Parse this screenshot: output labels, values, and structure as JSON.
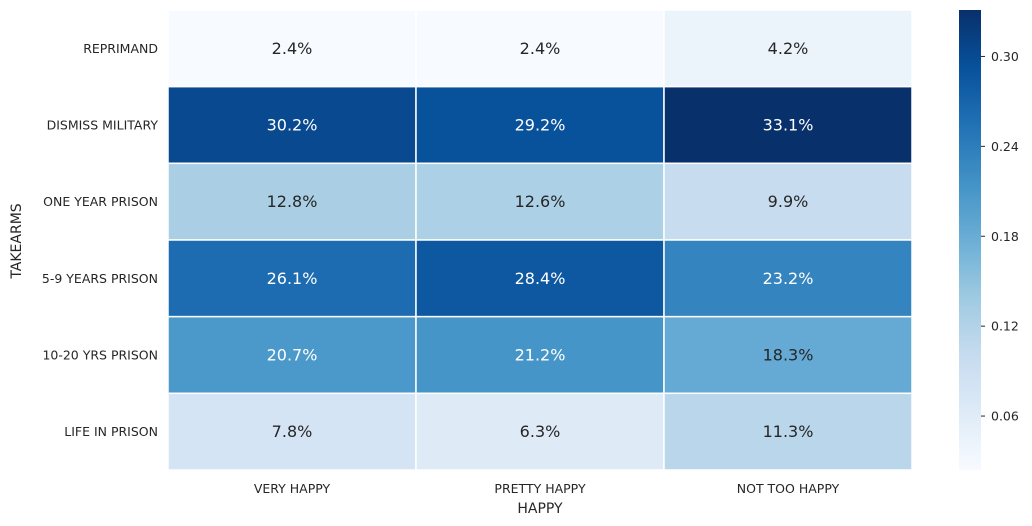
{
  "chart_data": {
    "type": "heatmap",
    "title": "",
    "xlabel": "HAPPY",
    "ylabel": "TAKEARMS",
    "x_categories": [
      "VERY HAPPY",
      "PRETTY HAPPY",
      "NOT TOO HAPPY"
    ],
    "y_categories": [
      "REPRIMAND",
      "DISMISS MILITARY",
      "ONE YEAR PRISON",
      "5-9 YEARS PRISON",
      "10-20 YRS PRISON",
      "LIFE IN PRISON"
    ],
    "values": [
      [
        0.024,
        0.024,
        0.042
      ],
      [
        0.302,
        0.292,
        0.331
      ],
      [
        0.128,
        0.126,
        0.099
      ],
      [
        0.261,
        0.284,
        0.232
      ],
      [
        0.207,
        0.212,
        0.183
      ],
      [
        0.078,
        0.063,
        0.113
      ]
    ],
    "annotations": [
      [
        "2.4%",
        "2.4%",
        "4.2%"
      ],
      [
        "30.2%",
        "29.2%",
        "33.1%"
      ],
      [
        "12.8%",
        "12.6%",
        "9.9%"
      ],
      [
        "26.1%",
        "28.4%",
        "23.2%"
      ],
      [
        "20.7%",
        "21.2%",
        "18.3%"
      ],
      [
        "7.8%",
        "6.3%",
        "11.3%"
      ]
    ],
    "colormap": "Blues",
    "color_range": [
      0.024,
      0.331
    ],
    "colorbar_ticks": [
      "0.06",
      "0.12",
      "0.18",
      "0.24",
      "0.30"
    ],
    "colorbar_tick_values": [
      0.06,
      0.12,
      0.18,
      0.24,
      0.3
    ],
    "grid": false
  }
}
